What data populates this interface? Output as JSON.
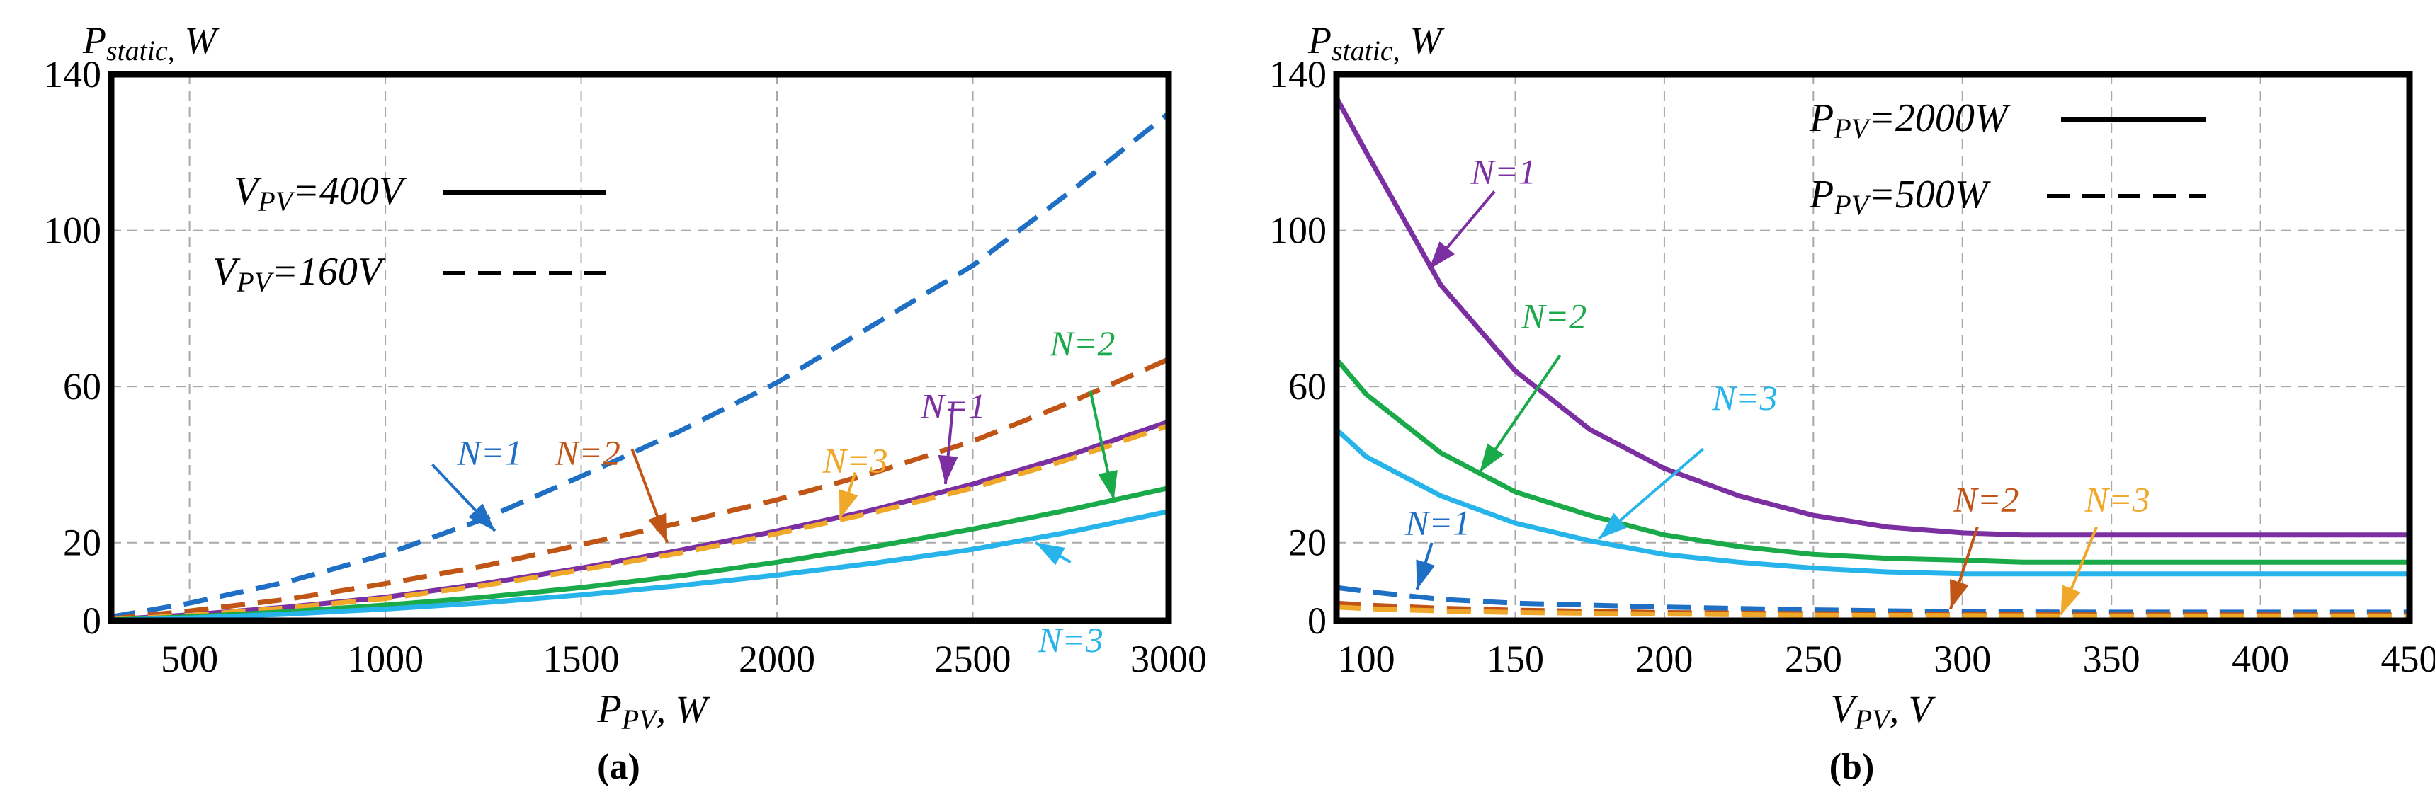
{
  "chart_data": [
    {
      "type": "line",
      "panel": "a",
      "caption": "(a)",
      "title_main": "P",
      "title_sub": "static,",
      "title_unit": "W",
      "xlabel_main": "P",
      "xlabel_sub": "PV",
      "xlabel_unit": ", W",
      "xlim": [
        300,
        3000
      ],
      "ylim": [
        0,
        140
      ],
      "xticks": [
        500,
        1000,
        1500,
        2000,
        2500,
        3000
      ],
      "yticks": [
        0,
        20,
        60,
        100,
        140
      ],
      "grid_x": [
        500,
        1000,
        1500,
        2000,
        2500
      ],
      "grid_y": [
        20,
        60,
        100
      ],
      "grid": true,
      "legend": [
        {
          "main": "V",
          "sub": "PV",
          "rest": "=400V",
          "style": "solid"
        },
        {
          "main": "V",
          "sub": "PV",
          "rest": "=160V",
          "style": "dashed"
        }
      ],
      "series": [
        {
          "name": "N=1, V_PV=160V",
          "color": "#1f6fc5",
          "dash": true,
          "x": [
            300,
            500,
            750,
            1000,
            1250,
            1500,
            1750,
            2000,
            2250,
            2500,
            2750,
            3000
          ],
          "y": [
            1.0,
            4.5,
            10,
            17,
            26,
            37,
            48.5,
            61,
            76,
            91,
            110,
            130
          ]
        },
        {
          "name": "N=2, V_PV=160V",
          "color": "#c05515",
          "dash": true,
          "x": [
            300,
            500,
            750,
            1000,
            1250,
            1500,
            1750,
            2000,
            2250,
            2500,
            2750,
            3000
          ],
          "y": [
            0.5,
            2.5,
            5.5,
            9.5,
            14,
            19.5,
            25,
            31,
            38,
            46,
            56,
            67
          ]
        },
        {
          "name": "N=1, V_PV=400V",
          "color": "#7b2fa0",
          "dash": false,
          "x": [
            300,
            500,
            750,
            1000,
            1250,
            1500,
            1750,
            2000,
            2250,
            2500,
            2750,
            3000
          ],
          "y": [
            0.3,
            1.5,
            3.5,
            6,
            9.5,
            13.5,
            18,
            23,
            28.5,
            35,
            42.5,
            51
          ]
        },
        {
          "name": "N=3, V_PV=160V",
          "color": "#f0a82a",
          "dash": true,
          "x": [
            300,
            500,
            750,
            1000,
            1250,
            1500,
            1750,
            2000,
            2250,
            2500,
            2750,
            3000
          ],
          "y": [
            0.3,
            1.4,
            3.3,
            5.7,
            9,
            13,
            17.3,
            22.3,
            27.8,
            34,
            41.5,
            50
          ]
        },
        {
          "name": "N=2, V_PV=400V",
          "color": "#1aaa4a",
          "dash": false,
          "x": [
            300,
            500,
            750,
            1000,
            1250,
            1500,
            1750,
            2000,
            2250,
            2500,
            2750,
            3000
          ],
          "y": [
            0.2,
            1,
            2.3,
            4,
            6,
            8.5,
            11.5,
            15,
            19,
            23.5,
            28.5,
            34
          ]
        },
        {
          "name": "N=3, V_PV=400V",
          "color": "#27b4ea",
          "dash": false,
          "x": [
            300,
            500,
            750,
            1000,
            1250,
            1500,
            1750,
            2000,
            2250,
            2500,
            2750,
            3000
          ],
          "y": [
            0.1,
            0.7,
            1.7,
            3,
            4.6,
            6.6,
            9,
            11.7,
            14.8,
            18.3,
            22.8,
            28
          ]
        }
      ],
      "annotations": [
        {
          "text": "N=1",
          "color": "#1f6fc5",
          "tx": 1350,
          "ty": 40,
          "ax": 1280,
          "ay": 23,
          "hx": 1120,
          "hy": 40,
          "anchor": "end"
        },
        {
          "text": "N=2",
          "color": "#c05515",
          "tx": 1600,
          "ty": 40,
          "ax": 1720,
          "ay": 20,
          "hx": 1630,
          "hy": 44,
          "anchor": "end"
        },
        {
          "text": "N=3",
          "color": "#f0a82a",
          "tx": 2200,
          "ty": 38,
          "ax": 2160,
          "ay": 26,
          "hx": 2200,
          "hy": 38,
          "anchor": "middle"
        },
        {
          "text": "N=1",
          "color": "#7b2fa0",
          "tx": 2450,
          "ty": 52,
          "ax": 2430,
          "ay": 35,
          "hx": 2450,
          "hy": 56,
          "anchor": "middle"
        },
        {
          "text": "N=2",
          "color": "#1aaa4a",
          "tx": 2780,
          "ty": 68,
          "ax": 2860,
          "ay": 31,
          "hx": 2800,
          "hy": 59,
          "anchor": "middle"
        },
        {
          "text": "N=3",
          "color": "#27b4ea",
          "tx": 2750,
          "ty": -8,
          "ax": 2660,
          "ay": 20,
          "hx": 2750,
          "hy": 15,
          "anchor": "middle"
        }
      ]
    },
    {
      "type": "line",
      "panel": "b",
      "caption": "(b)",
      "title_main": "P",
      "title_sub": "static,",
      "title_unit": "W",
      "xlabel_main": "V",
      "xlabel_sub": "PV",
      "xlabel_unit": ", V",
      "xlim": [
        90,
        450
      ],
      "ylim": [
        0,
        140
      ],
      "xticks": [
        100,
        150,
        200,
        250,
        300,
        350,
        400,
        450
      ],
      "yticks": [
        0,
        20,
        60,
        100,
        140
      ],
      "grid_x": [
        150,
        200,
        250,
        300,
        350,
        400
      ],
      "grid_y": [
        20,
        60,
        100
      ],
      "grid": true,
      "legend": [
        {
          "main": "P",
          "sub": "PV",
          "rest": "=2000W",
          "style": "solid"
        },
        {
          "main": "P",
          "sub": "PV",
          "rest": "=500W",
          "style": "dashed"
        }
      ],
      "series": [
        {
          "name": "N=1, P_PV=2000W",
          "color": "#7b2fa0",
          "dash": false,
          "x": [
            90,
            100,
            125,
            150,
            175,
            200,
            225,
            250,
            275,
            300,
            320,
            350,
            400,
            450
          ],
          "y": [
            134,
            120,
            86,
            64,
            49,
            39,
            32,
            27,
            24,
            22.5,
            22,
            22,
            22,
            22
          ]
        },
        {
          "name": "N=2, P_PV=2000W",
          "color": "#1aaa4a",
          "dash": false,
          "x": [
            90,
            100,
            125,
            150,
            175,
            200,
            225,
            250,
            275,
            300,
            320,
            350,
            400,
            450
          ],
          "y": [
            67,
            58,
            43,
            33,
            27,
            22,
            19,
            17,
            16,
            15.5,
            15,
            15,
            15,
            15
          ]
        },
        {
          "name": "N=3, P_PV=2000W",
          "color": "#27b4ea",
          "dash": false,
          "x": [
            90,
            100,
            125,
            150,
            175,
            200,
            225,
            250,
            275,
            300,
            320,
            350,
            400,
            450
          ],
          "y": [
            49,
            42,
            32,
            25,
            20.5,
            17,
            15,
            13.5,
            12.5,
            12,
            12,
            12,
            12,
            12
          ]
        },
        {
          "name": "N=1, P_PV=500W",
          "color": "#1f6fc5",
          "dash": true,
          "x": [
            90,
            100,
            125,
            150,
            200,
            250,
            300,
            350,
            400,
            450
          ],
          "y": [
            8.5,
            7.5,
            5.5,
            4.5,
            3.5,
            2.8,
            2.3,
            2.2,
            2.2,
            2.2
          ]
        },
        {
          "name": "N=2, P_PV=500W",
          "color": "#c05515",
          "dash": true,
          "x": [
            90,
            100,
            125,
            150,
            200,
            250,
            300,
            350,
            400,
            450
          ],
          "y": [
            4.5,
            4,
            3.2,
            2.7,
            2.1,
            1.8,
            1.6,
            1.5,
            1.5,
            1.5
          ]
        },
        {
          "name": "N=3, P_PV=500W",
          "color": "#f0a82a",
          "dash": true,
          "x": [
            90,
            100,
            125,
            150,
            200,
            250,
            300,
            350,
            400,
            450
          ],
          "y": [
            3.5,
            3.1,
            2.5,
            2.1,
            1.7,
            1.4,
            1.3,
            1.2,
            1.2,
            1.2
          ]
        }
      ],
      "annotations": [
        {
          "text": "N=1",
          "color": "#7b2fa0",
          "tx": 146,
          "ty": 112,
          "ax": 121,
          "ay": 90,
          "hx": 143,
          "hy": 110,
          "anchor": "middle"
        },
        {
          "text": "N=2",
          "color": "#1aaa4a",
          "tx": 163,
          "ty": 75,
          "ax": 138,
          "ay": 38,
          "hx": 165,
          "hy": 68,
          "anchor": "middle"
        },
        {
          "text": "N=3",
          "color": "#27b4ea",
          "tx": 227,
          "ty": 54,
          "ax": 178,
          "ay": 21,
          "hx": 213,
          "hy": 44,
          "anchor": "middle"
        },
        {
          "text": "N=1",
          "color": "#1f6fc5",
          "tx": 124,
          "ty": 22,
          "ax": 117,
          "ay": 8,
          "hx": 122,
          "hy": 20,
          "anchor": "middle"
        },
        {
          "text": "N=2",
          "color": "#c05515",
          "tx": 308,
          "ty": 28,
          "ax": 296,
          "ay": 3,
          "hx": 305,
          "hy": 24,
          "anchor": "middle"
        },
        {
          "text": "N=3",
          "color": "#f0a82a",
          "tx": 352,
          "ty": 28,
          "ax": 333,
          "ay": 1.5,
          "hx": 345,
          "hy": 24,
          "anchor": "middle"
        }
      ]
    }
  ]
}
